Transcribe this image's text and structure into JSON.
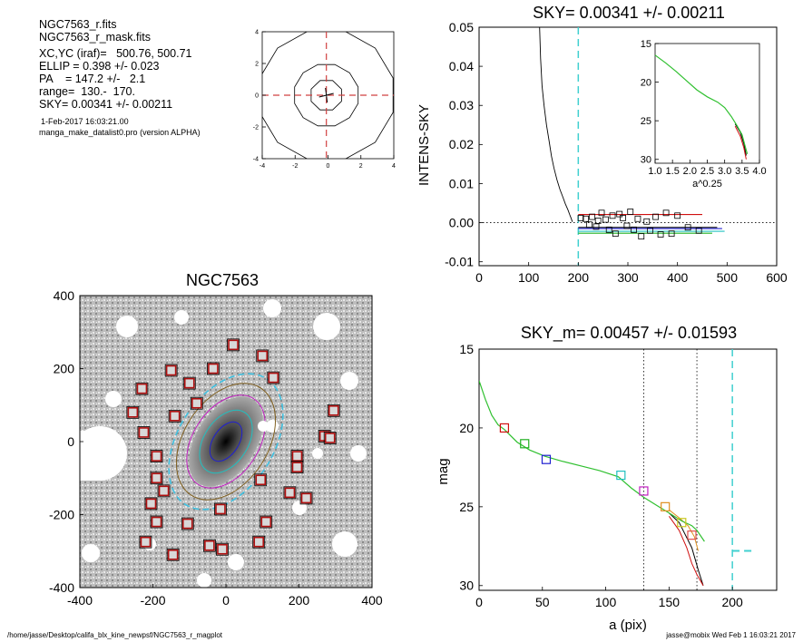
{
  "info": {
    "file1": "NGC7563_r.fits",
    "file2": "NGC7563_r_mask.fits",
    "xcyc": "XC,YC (iraf)=   500.76, 500.71",
    "ellip": "ELLIP = 0.398 +/- 0.023",
    "pa": "PA    = 147.2 +/-   2.1",
    "range": "range=  130.-  170.",
    "sky": "SKY= 0.00341 +/- 0.00211",
    "date": "1-Feb-2017 16:03:21.00",
    "program": "manga_make_datalist0.pro (version ALPHA)"
  },
  "footer": {
    "path": "/home/jasse/Desktop/califa_blx_kine_newpsf/NGC7563_r_magplot",
    "user": "jasse@mobix  Wed Feb  1 16:03:21 2017"
  },
  "chart_data": [
    {
      "id": "psf",
      "type": "line",
      "title": "",
      "xlim": [
        -4,
        4
      ],
      "ylim": [
        -4,
        4
      ],
      "xticks": [
        "-4",
        "-2",
        "0",
        "2",
        "4"
      ],
      "yticks": [
        "-4",
        "-2",
        "0",
        "2",
        "4"
      ],
      "contour_radii": [
        1.0,
        2.0,
        4.2
      ],
      "center": [
        -0.1,
        0.0
      ]
    },
    {
      "id": "sky",
      "type": "scatter",
      "title": "SKY= 0.00341 +/- 0.00211",
      "ylabel": "INTENS-SKY",
      "xlim": [
        0,
        600
      ],
      "ylim": [
        -0.011,
        0.05
      ],
      "xticks": [
        "0",
        "100",
        "200",
        "300",
        "400",
        "500",
        "600"
      ],
      "yticks": [
        "-0.01",
        "0.00",
        "0.01",
        "0.02",
        "0.03",
        "0.04",
        "0.05"
      ],
      "vline": 200,
      "profile": [
        [
          122,
          0.05
        ],
        [
          124,
          0.042
        ],
        [
          127,
          0.035
        ],
        [
          131,
          0.03
        ],
        [
          136,
          0.025
        ],
        [
          141,
          0.021
        ],
        [
          146,
          0.017
        ],
        [
          151,
          0.014
        ],
        [
          157,
          0.011
        ],
        [
          163,
          0.0085
        ],
        [
          169,
          0.0065
        ],
        [
          174,
          0.0048
        ],
        [
          179,
          0.0033
        ],
        [
          183,
          0.002
        ],
        [
          186,
          0.001
        ],
        [
          188,
          0.0002
        ]
      ],
      "points": [
        [
          205,
          0.0012
        ],
        [
          215,
          0.001
        ],
        [
          222,
          -0.0005
        ],
        [
          228,
          0.0015
        ],
        [
          236,
          -0.001
        ],
        [
          240,
          0.0005
        ],
        [
          247,
          0.0025
        ],
        [
          255,
          0.0008
        ],
        [
          262,
          -0.0018
        ],
        [
          269,
          0.0018
        ],
        [
          275,
          -0.0028
        ],
        [
          283,
          0.0022
        ],
        [
          290,
          0.0012
        ],
        [
          298,
          -0.0008
        ],
        [
          305,
          0.0028
        ],
        [
          312,
          -0.0018
        ],
        [
          320,
          0.001
        ],
        [
          327,
          -0.0035
        ],
        [
          338,
          0.0003
        ],
        [
          345,
          -0.002
        ],
        [
          356,
          0.0015
        ],
        [
          366,
          -0.003
        ],
        [
          377,
          0.0025
        ],
        [
          388,
          -0.0028
        ],
        [
          400,
          0.0018
        ],
        [
          421,
          -0.0012
        ],
        [
          443,
          -0.002
        ]
      ],
      "hlines": [
        {
          "color": "#d01010",
          "x": [
            200,
            450
          ],
          "y": 0.0021
        },
        {
          "color": "#000000",
          "x": [
            200,
            480
          ],
          "y": -0.0012
        },
        {
          "color": "#2020d0",
          "x": [
            200,
            490
          ],
          "y": -0.0015
        },
        {
          "color": "#20c0c0",
          "x": [
            200,
            495
          ],
          "y": -0.0022
        },
        {
          "color": "#20b020",
          "x": [
            200,
            470
          ],
          "y": -0.0027
        }
      ],
      "inset": {
        "xlabel": "a^0.25",
        "xlim": [
          1.0,
          4.0
        ],
        "ylim": [
          30.5,
          15.0
        ],
        "xticks": [
          "1.0",
          "1.5",
          "2.0",
          "2.5",
          "3.0",
          "3.5",
          "4.0"
        ],
        "yticks": [
          "15",
          "20",
          "25",
          "30"
        ],
        "green": [
          [
            1.0,
            16.5
          ],
          [
            1.3,
            17.5
          ],
          [
            1.6,
            18.6
          ],
          [
            1.9,
            19.8
          ],
          [
            2.2,
            21.0
          ],
          [
            2.5,
            21.9
          ],
          [
            2.8,
            22.6
          ],
          [
            3.0,
            23.3
          ],
          [
            3.2,
            24.5
          ],
          [
            3.35,
            25.6
          ],
          [
            3.5,
            26.8
          ],
          [
            3.6,
            28.5
          ],
          [
            3.65,
            29.3
          ]
        ],
        "red": [
          [
            3.3,
            25.7
          ],
          [
            3.45,
            27.0
          ],
          [
            3.55,
            28.5
          ],
          [
            3.62,
            30.0
          ]
        ],
        "black": [
          [
            3.3,
            25.4
          ],
          [
            3.45,
            26.5
          ],
          [
            3.55,
            28.0
          ],
          [
            3.62,
            29.5
          ]
        ]
      }
    },
    {
      "id": "image",
      "type": "scatter",
      "title": "NGC7563",
      "xlim": [
        -400,
        400
      ],
      "ylim": [
        -400,
        400
      ],
      "xticks": [
        "-400",
        "-200",
        "0",
        "200",
        "400"
      ],
      "yticks": [
        "-400",
        "-200",
        "0",
        "200",
        "400"
      ],
      "sky_boxes": [
        [
          20,
          265
        ],
        [
          -150,
          195
        ],
        [
          -35,
          200
        ],
        [
          100,
          235
        ],
        [
          -100,
          160
        ],
        [
          130,
          175
        ],
        [
          -230,
          145
        ],
        [
          -80,
          105
        ],
        [
          -140,
          70
        ],
        [
          -255,
          80
        ],
        [
          -225,
          25
        ],
        [
          295,
          85
        ],
        [
          270,
          15
        ],
        [
          -190,
          -40
        ],
        [
          -190,
          -100
        ],
        [
          285,
          10
        ],
        [
          195,
          -40
        ],
        [
          195,
          -70
        ],
        [
          -205,
          -170
        ],
        [
          -190,
          -220
        ],
        [
          -220,
          -275
        ],
        [
          -145,
          -310
        ],
        [
          -45,
          -285
        ],
        [
          -10,
          -295
        ],
        [
          -105,
          -225
        ],
        [
          -15,
          -185
        ],
        [
          110,
          -220
        ],
        [
          90,
          -275
        ],
        [
          175,
          -140
        ],
        [
          95,
          -105
        ],
        [
          -170,
          -135
        ],
        [
          220,
          -155
        ]
      ],
      "ellipse_axes": [
        [
          60,
          35
        ],
        [
          95,
          60
        ],
        [
          140,
          90
        ],
        [
          175,
          115
        ],
        [
          205,
          130
        ]
      ]
    },
    {
      "id": "mag",
      "type": "line",
      "title": "SKY_m=  0.00457 +/- 0.01593",
      "xlabel": "a (pix)",
      "ylabel": "mag",
      "xlim": [
        0,
        235
      ],
      "ylim": [
        30.3,
        15.0
      ],
      "xticks": [
        "0",
        "50",
        "100",
        "150",
        "200"
      ],
      "yticks": [
        "15",
        "20",
        "25",
        "30"
      ],
      "vlines_dotted": [
        130,
        172
      ],
      "vline_dashed": 200,
      "cyan_dash": [
        [
          200,
          27.8
        ],
        [
          217,
          27.8
        ]
      ],
      "green": [
        [
          0,
          17.0
        ],
        [
          5,
          18.2
        ],
        [
          10,
          19.2
        ],
        [
          15,
          19.8
        ],
        [
          20,
          20.1
        ],
        [
          30,
          20.9
        ],
        [
          40,
          21.4
        ],
        [
          52,
          21.8
        ],
        [
          65,
          22.1
        ],
        [
          80,
          22.4
        ],
        [
          95,
          22.7
        ],
        [
          110,
          23.1
        ],
        [
          120,
          23.8
        ],
        [
          130,
          24.4
        ],
        [
          140,
          24.9
        ],
        [
          150,
          25.4
        ],
        [
          160,
          25.9
        ],
        [
          168,
          26.2
        ],
        [
          172,
          26.5
        ],
        [
          178,
          27.2
        ]
      ],
      "red": [
        [
          150,
          25.6
        ],
        [
          158,
          26.5
        ],
        [
          164,
          27.6
        ],
        [
          168,
          28.6
        ],
        [
          172,
          29.3
        ],
        [
          177,
          30.0
        ]
      ],
      "black": [
        [
          150,
          25.4
        ],
        [
          158,
          26.0
        ],
        [
          163,
          26.8
        ],
        [
          168,
          27.6
        ],
        [
          173,
          29.0
        ],
        [
          177,
          30.0
        ]
      ],
      "orange": [
        [
          150,
          25.2
        ],
        [
          158,
          25.7
        ],
        [
          165,
          26.2
        ],
        [
          170,
          26.9
        ],
        [
          173,
          27.8
        ]
      ],
      "markers": [
        {
          "x": 20,
          "y": 20.0,
          "color": "#d01010"
        },
        {
          "x": 36,
          "y": 21.0,
          "color": "#20b020"
        },
        {
          "x": 53,
          "y": 22.0,
          "color": "#2020d0"
        },
        {
          "x": 112,
          "y": 23.0,
          "color": "#20c0c0"
        },
        {
          "x": 130,
          "y": 24.0,
          "color": "#c020c0"
        },
        {
          "x": 147,
          "y": 25.0,
          "color": "#e09020"
        },
        {
          "x": 160,
          "y": 26.0,
          "color": "#c8c820"
        },
        {
          "x": 168,
          "y": 26.8,
          "color": "#e05050"
        }
      ]
    }
  ]
}
